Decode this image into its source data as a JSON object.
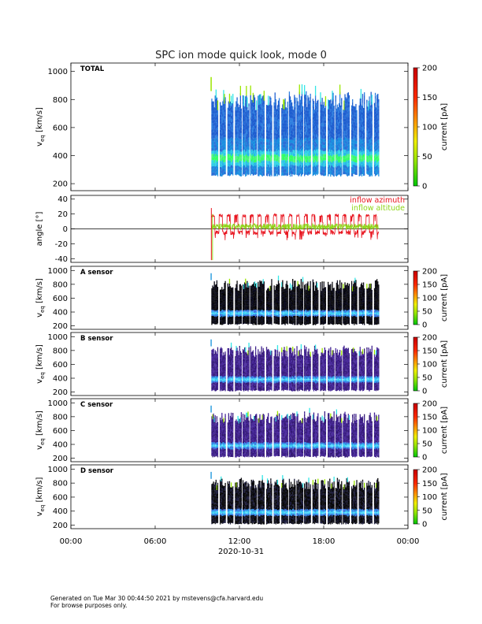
{
  "footer": {
    "line1": "Generated on Tue Mar 30 00:44:50 2021 by mstevens@cfa.harvard.edu",
    "line2": "For browse purposes only."
  },
  "colors": {
    "inflow_azimuth": "#e8141e",
    "inflow_altitude": "#8fd61a",
    "colorbar": [
      "#00c800",
      "#9be600",
      "#f0f000",
      "#ff9600",
      "#ff2800",
      "#c80000"
    ]
  },
  "chart_data": {
    "type": "heatmap",
    "title": "SPC ion mode quick look, mode 0",
    "x_axis": {
      "label": "2020-10-31",
      "ticks": [
        "00:00",
        "06:00",
        "12:00",
        "18:00",
        "00:00"
      ],
      "tick_hours": [
        0,
        6,
        12,
        18,
        24
      ],
      "range_hours": [
        0,
        24
      ],
      "data_start_hour": 10.0,
      "data_end_hour": 21.9
    },
    "panels": [
      {
        "id": "total",
        "type": "heatmap",
        "label": "TOTAL",
        "ylabel": "v_eq [km/s]",
        "ylabel_main": "v",
        "ylabel_sub": "eq",
        "ylabel_unit": "[km/s]",
        "yticks": [
          "1000",
          "800",
          "600",
          "400",
          "200"
        ],
        "ytick_values": [
          1000,
          800,
          600,
          400,
          200
        ],
        "ylim": [
          150,
          1060
        ],
        "colorbar": {
          "label": "current [pA]",
          "ticks": [
            "200",
            "150",
            "100",
            "50",
            "0"
          ],
          "tick_values": [
            200,
            150,
            100,
            50,
            0
          ],
          "range": [
            0,
            200
          ]
        },
        "bulk_speed_kms": 370,
        "min_speed_kms": 250,
        "max_speed_kms": 900
      },
      {
        "id": "angle",
        "type": "line",
        "ylabel": "angle [°]",
        "yticks": [
          "40",
          "20",
          "0",
          "-20",
          "-40"
        ],
        "ytick_values": [
          40,
          20,
          0,
          -20,
          -40
        ],
        "ylim": [
          -45,
          45
        ],
        "series": [
          {
            "name": "inflow azimuth",
            "typical_low_deg": -5,
            "typical_high_deg": 20
          },
          {
            "name": "inflow altitude",
            "typical_low_deg": -2,
            "typical_high_deg": 8
          }
        ]
      },
      {
        "id": "a",
        "type": "heatmap",
        "label": "A sensor",
        "ylabel": "v_eq [km/s]",
        "ylabel_main": "v",
        "ylabel_sub": "eq",
        "ylabel_unit": "[km/s]",
        "yticks": [
          "1000",
          "800",
          "600",
          "400",
          "200"
        ],
        "ytick_values": [
          1000,
          800,
          600,
          400,
          200
        ],
        "ylim": [
          150,
          1060
        ],
        "colorbar": {
          "label": "current [pA]",
          "ticks": [
            "200",
            "150",
            "100",
            "50",
            "0"
          ],
          "tick_values": [
            200,
            150,
            100,
            50,
            0
          ],
          "range": [
            0,
            200
          ]
        }
      },
      {
        "id": "b",
        "type": "heatmap",
        "label": "B sensor",
        "ylabel": "v_eq [km/s]",
        "ylabel_main": "v",
        "ylabel_sub": "eq",
        "ylabel_unit": "[km/s]",
        "yticks": [
          "1000",
          "800",
          "600",
          "400",
          "200"
        ],
        "ytick_values": [
          1000,
          800,
          600,
          400,
          200
        ],
        "ylim": [
          150,
          1060
        ],
        "colorbar": {
          "label": "current [pA]",
          "ticks": [
            "200",
            "150",
            "100",
            "50",
            "0"
          ],
          "tick_values": [
            200,
            150,
            100,
            50,
            0
          ],
          "range": [
            0,
            200
          ]
        }
      },
      {
        "id": "c",
        "type": "heatmap",
        "label": "C sensor",
        "ylabel": "v_eq [km/s]",
        "ylabel_main": "v",
        "ylabel_sub": "eq",
        "ylabel_unit": "[km/s]",
        "yticks": [
          "1000",
          "800",
          "600",
          "400",
          "200"
        ],
        "ytick_values": [
          1000,
          800,
          600,
          400,
          200
        ],
        "ylim": [
          150,
          1060
        ],
        "colorbar": {
          "label": "current [pA]",
          "ticks": [
            "200",
            "150",
            "100",
            "50",
            "0"
          ],
          "tick_values": [
            200,
            150,
            100,
            50,
            0
          ],
          "range": [
            0,
            200
          ]
        }
      },
      {
        "id": "d",
        "type": "heatmap",
        "label": "D sensor",
        "ylabel": "v_eq [km/s]",
        "ylabel_main": "v",
        "ylabel_sub": "eq",
        "ylabel_unit": "[km/s]",
        "yticks": [
          "1000",
          "800",
          "600",
          "400",
          "200"
        ],
        "ytick_values": [
          1000,
          800,
          600,
          400,
          200
        ],
        "ylim": [
          150,
          1060
        ],
        "colorbar": {
          "label": "current [pA]",
          "ticks": [
            "200",
            "150",
            "100",
            "50",
            "0"
          ],
          "tick_values": [
            200,
            150,
            100,
            50,
            0
          ],
          "range": [
            0,
            200
          ]
        }
      }
    ]
  }
}
